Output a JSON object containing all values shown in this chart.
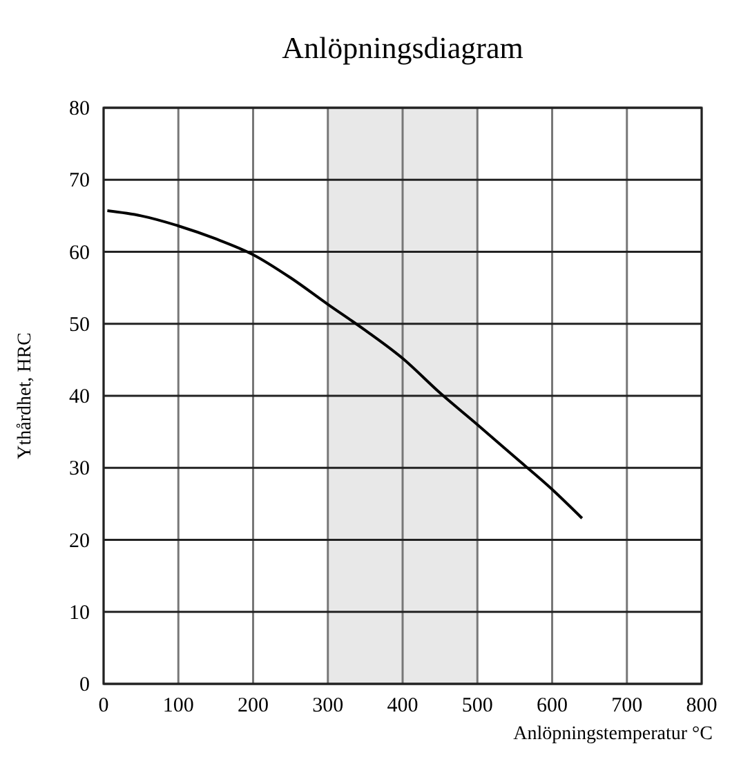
{
  "chart_data": {
    "type": "line",
    "title": "Anlöpningsdiagram",
    "xlabel": "Anlöpningstemperatur °C",
    "ylabel": "Ythårdhet, HRC",
    "x": [
      5,
      50,
      100,
      150,
      200,
      250,
      300,
      350,
      400,
      450,
      500,
      550,
      600,
      640
    ],
    "series": [
      {
        "color": "#000000",
        "values": [
          65.7,
          65,
          63.6,
          61.8,
          59.6,
          56.4,
          52.7,
          49.1,
          45.2,
          40.4,
          36,
          31.5,
          27,
          23
        ]
      }
    ],
    "xlim": [
      0,
      800
    ],
    "xticks": [
      0,
      100,
      200,
      300,
      400,
      500,
      600,
      700,
      800
    ],
    "ylim": [
      0,
      80
    ],
    "yticks": [
      0,
      10,
      20,
      30,
      40,
      50,
      60,
      70,
      80
    ],
    "grid": true,
    "marker": "none",
    "line_style": "solid",
    "bands": [
      {
        "axis": "x",
        "from": 300,
        "to": 500,
        "color": "#e8e8e8"
      }
    ]
  }
}
